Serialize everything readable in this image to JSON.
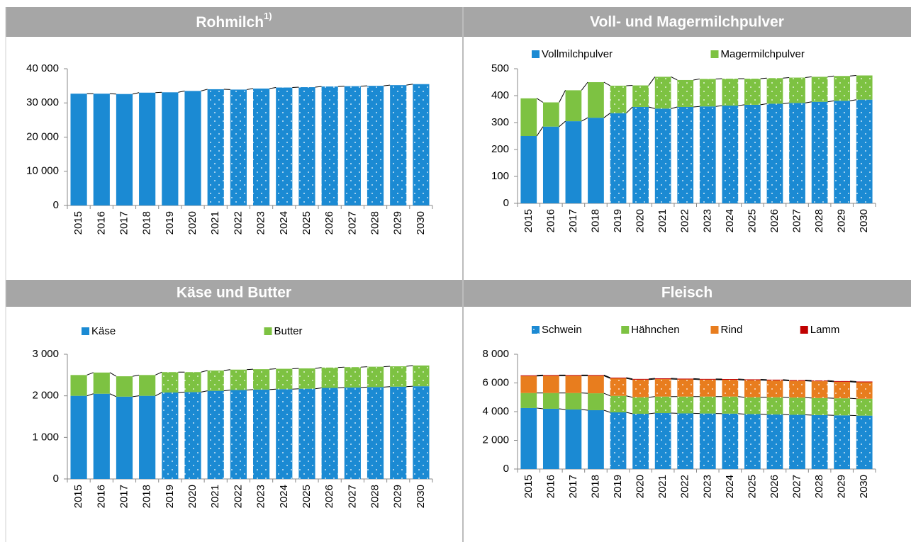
{
  "chart_data": [
    {
      "type": "bar",
      "title": "Rohmilch",
      "title_superscript": "1)",
      "categories": [
        "2015",
        "2016",
        "2017",
        "2018",
        "2019",
        "2020",
        "2021",
        "2022",
        "2023",
        "2024",
        "2025",
        "2026",
        "2027",
        "2028",
        "2029",
        "2030"
      ],
      "values": [
        32700,
        32700,
        32600,
        33000,
        33100,
        33500,
        34000,
        33900,
        34200,
        34500,
        34600,
        34800,
        34900,
        35000,
        35200,
        35500
      ],
      "color": "#1b8ad3",
      "dotted_from_index": 6,
      "ylim": [
        0,
        40000
      ],
      "yticks": [
        0,
        {
          "value": 10000,
          "label": "10 000"
        },
        {
          "value": 20000,
          "label": "20 000"
        },
        {
          "value": 30000,
          "label": "30 000"
        },
        {
          "value": 40000,
          "label": "40 000"
        }
      ]
    },
    {
      "type": "stacked_bar",
      "title": "Voll- und Magermilchpulver",
      "categories": [
        "2015",
        "2016",
        "2017",
        "2018",
        "2019",
        "2020",
        "2021",
        "2022",
        "2023",
        "2024",
        "2025",
        "2026",
        "2027",
        "2028",
        "2029",
        "2030"
      ],
      "series": [
        {
          "name": "Vollmilchpulver",
          "color": "#1b8ad3",
          "values": [
            250,
            285,
            305,
            318,
            335,
            358,
            352,
            358,
            360,
            363,
            366,
            370,
            373,
            377,
            381,
            385
          ]
        },
        {
          "name": "Magermilchpulver",
          "color": "#7dc242",
          "values": [
            140,
            90,
            115,
            132,
            102,
            80,
            118,
            100,
            102,
            100,
            97,
            95,
            94,
            93,
            92,
            90
          ]
        }
      ],
      "dotted_from_index": 4,
      "ylim": [
        0,
        500
      ],
      "yticks": [
        0,
        100,
        200,
        300,
        400,
        500
      ]
    },
    {
      "type": "stacked_bar",
      "title": "Käse und Butter",
      "categories": [
        "2015",
        "2016",
        "2017",
        "2018",
        "2019",
        "2020",
        "2021",
        "2022",
        "2023",
        "2024",
        "2025",
        "2026",
        "2027",
        "2028",
        "2029",
        "2030"
      ],
      "series": [
        {
          "name": "Käse",
          "color": "#1b8ad3",
          "values": [
            2000,
            2050,
            1980,
            2000,
            2080,
            2090,
            2120,
            2140,
            2150,
            2160,
            2170,
            2190,
            2200,
            2210,
            2220,
            2230
          ]
        },
        {
          "name": "Butter",
          "color": "#7dc242",
          "values": [
            500,
            510,
            490,
            500,
            490,
            480,
            490,
            490,
            490,
            490,
            490,
            490,
            490,
            490,
            490,
            500
          ]
        }
      ],
      "dotted_from_index": 4,
      "ylim": [
        0,
        3000
      ],
      "yticks": [
        0,
        {
          "value": 1000,
          "label": "1 000"
        },
        {
          "value": 2000,
          "label": "2 000"
        },
        {
          "value": 3000,
          "label": "3 000"
        }
      ]
    },
    {
      "type": "stacked_bar",
      "title": "Fleisch",
      "categories": [
        "2015",
        "2016",
        "2017",
        "2018",
        "2019",
        "2020",
        "2021",
        "2022",
        "2023",
        "2024",
        "2025",
        "2026",
        "2027",
        "2028",
        "2029",
        "2030"
      ],
      "series": [
        {
          "name": "Schwein",
          "color": "#1b8ad3",
          "values": [
            4250,
            4200,
            4150,
            4100,
            3950,
            3850,
            3900,
            3880,
            3870,
            3860,
            3830,
            3800,
            3780,
            3760,
            3740,
            3720
          ]
        },
        {
          "name": "Hähnchen",
          "color": "#7dc242",
          "values": [
            1050,
            1100,
            1150,
            1180,
            1150,
            1150,
            1150,
            1170,
            1180,
            1190,
            1170,
            1200,
            1200,
            1190,
            1190,
            1180
          ]
        },
        {
          "name": "Rind",
          "color": "#e87d1e",
          "values": [
            1180,
            1200,
            1200,
            1220,
            1220,
            1230,
            1220,
            1200,
            1180,
            1170,
            1200,
            1180,
            1170,
            1170,
            1150,
            1150
          ]
        },
        {
          "name": "Lamm",
          "color": "#c00000",
          "values": [
            50,
            50,
            50,
            50,
            50,
            50,
            50,
            50,
            50,
            50,
            50,
            50,
            50,
            50,
            50,
            50
          ]
        }
      ],
      "dotted_from_index": 4,
      "ylim": [
        0,
        8000
      ],
      "yticks": [
        0,
        {
          "value": 2000,
          "label": "2 000"
        },
        {
          "value": 4000,
          "label": "4 000"
        },
        {
          "value": 6000,
          "label": "6 000"
        },
        {
          "value": 8000,
          "label": "8 000"
        }
      ]
    }
  ]
}
